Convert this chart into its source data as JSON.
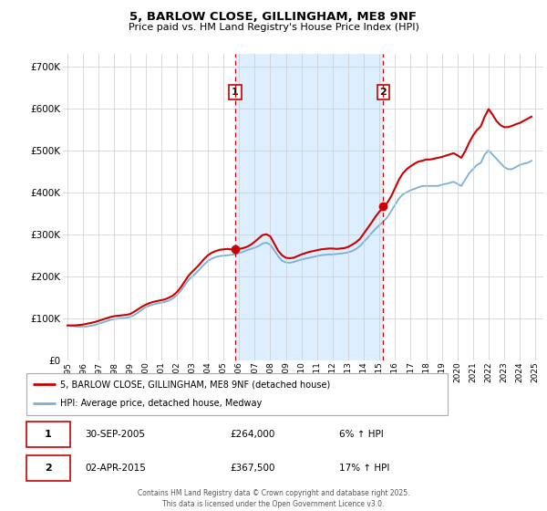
{
  "title": "5, BARLOW CLOSE, GILLINGHAM, ME8 9NF",
  "subtitle": "Price paid vs. HM Land Registry's House Price Index (HPI)",
  "ytick_values": [
    0,
    100000,
    200000,
    300000,
    400000,
    500000,
    600000,
    700000
  ],
  "ylim": [
    0,
    730000
  ],
  "xlim_start": 1994.7,
  "xlim_end": 2025.5,
  "marker1_x": 2005.75,
  "marker1_y": 264000,
  "marker2_x": 2015.25,
  "marker2_y": 367500,
  "vline1_x": 2005.75,
  "vline2_x": 2015.25,
  "shade_start": 2005.75,
  "shade_end": 2015.25,
  "red_color": "#cc0000",
  "blue_color": "#7ab0d4",
  "shade_color": "#ddeeff",
  "legend_label_red": "5, BARLOW CLOSE, GILLINGHAM, ME8 9NF (detached house)",
  "legend_label_blue": "HPI: Average price, detached house, Medway",
  "footnote1_num": "1",
  "footnote1_date": "30-SEP-2005",
  "footnote1_price": "£264,000",
  "footnote1_hpi": "6% ↑ HPI",
  "footnote2_num": "2",
  "footnote2_date": "02-APR-2015",
  "footnote2_price": "£367,500",
  "footnote2_hpi": "17% ↑ HPI",
  "copyright_text": "Contains HM Land Registry data © Crown copyright and database right 2025.\nThis data is licensed under the Open Government Licence v3.0.",
  "hpi_years": [
    1995.0,
    1995.25,
    1995.5,
    1995.75,
    1996.0,
    1996.25,
    1996.5,
    1996.75,
    1997.0,
    1997.25,
    1997.5,
    1997.75,
    1998.0,
    1998.25,
    1998.5,
    1998.75,
    1999.0,
    1999.25,
    1999.5,
    1999.75,
    2000.0,
    2000.25,
    2000.5,
    2000.75,
    2001.0,
    2001.25,
    2001.5,
    2001.75,
    2002.0,
    2002.25,
    2002.5,
    2002.75,
    2003.0,
    2003.25,
    2003.5,
    2003.75,
    2004.0,
    2004.25,
    2004.5,
    2004.75,
    2005.0,
    2005.25,
    2005.5,
    2005.75,
    2006.0,
    2006.25,
    2006.5,
    2006.75,
    2007.0,
    2007.25,
    2007.5,
    2007.75,
    2008.0,
    2008.25,
    2008.5,
    2008.75,
    2009.0,
    2009.25,
    2009.5,
    2009.75,
    2010.0,
    2010.25,
    2010.5,
    2010.75,
    2011.0,
    2011.25,
    2011.5,
    2011.75,
    2012.0,
    2012.25,
    2012.5,
    2012.75,
    2013.0,
    2013.25,
    2013.5,
    2013.75,
    2014.0,
    2014.25,
    2014.5,
    2014.75,
    2015.0,
    2015.25,
    2015.5,
    2015.75,
    2016.0,
    2016.25,
    2016.5,
    2016.75,
    2017.0,
    2017.25,
    2017.5,
    2017.75,
    2018.0,
    2018.25,
    2018.5,
    2018.75,
    2019.0,
    2019.25,
    2019.5,
    2019.75,
    2020.0,
    2020.25,
    2020.5,
    2020.75,
    2021.0,
    2021.25,
    2021.5,
    2021.75,
    2022.0,
    2022.25,
    2022.5,
    2022.75,
    2023.0,
    2023.25,
    2023.5,
    2023.75,
    2024.0,
    2024.25,
    2024.5,
    2024.75
  ],
  "hpi_values": [
    82000,
    81000,
    80500,
    80000,
    80000,
    80500,
    82000,
    84000,
    87000,
    90000,
    93000,
    96000,
    98000,
    99000,
    100000,
    101000,
    103000,
    107000,
    113000,
    120000,
    126000,
    130000,
    133000,
    135000,
    137000,
    139000,
    142000,
    147000,
    155000,
    165000,
    178000,
    191000,
    200000,
    208000,
    218000,
    228000,
    236000,
    242000,
    246000,
    248000,
    249000,
    250000,
    251000,
    252000,
    255000,
    258000,
    262000,
    265000,
    268000,
    272000,
    278000,
    280000,
    275000,
    262000,
    248000,
    237000,
    233000,
    232000,
    234000,
    237000,
    240000,
    242000,
    244000,
    246000,
    248000,
    250000,
    251000,
    252000,
    252000,
    253000,
    254000,
    255000,
    257000,
    260000,
    265000,
    272000,
    282000,
    292000,
    303000,
    313000,
    322000,
    330000,
    340000,
    355000,
    370000,
    385000,
    395000,
    400000,
    405000,
    408000,
    412000,
    415000,
    415000,
    415000,
    415000,
    415000,
    418000,
    420000,
    422000,
    425000,
    420000,
    415000,
    430000,
    445000,
    455000,
    465000,
    470000,
    490000,
    500000,
    490000,
    480000,
    470000,
    460000,
    455000,
    455000,
    460000,
    465000,
    468000,
    470000,
    475000
  ],
  "red_years": [
    1995.0,
    1995.25,
    1995.5,
    1995.75,
    1996.0,
    1996.25,
    1996.5,
    1996.75,
    1997.0,
    1997.25,
    1997.5,
    1997.75,
    1998.0,
    1998.25,
    1998.5,
    1998.75,
    1999.0,
    1999.25,
    1999.5,
    1999.75,
    2000.0,
    2000.25,
    2000.5,
    2000.75,
    2001.0,
    2001.25,
    2001.5,
    2001.75,
    2002.0,
    2002.25,
    2002.5,
    2002.75,
    2003.0,
    2003.25,
    2003.5,
    2003.75,
    2004.0,
    2004.25,
    2004.5,
    2004.75,
    2005.0,
    2005.25,
    2005.5,
    2005.75,
    2006.0,
    2006.25,
    2006.5,
    2006.75,
    2007.0,
    2007.25,
    2007.5,
    2007.75,
    2008.0,
    2008.25,
    2008.5,
    2008.75,
    2009.0,
    2009.25,
    2009.5,
    2009.75,
    2010.0,
    2010.25,
    2010.5,
    2010.75,
    2011.0,
    2011.25,
    2011.5,
    2011.75,
    2012.0,
    2012.25,
    2012.5,
    2012.75,
    2013.0,
    2013.25,
    2013.5,
    2013.75,
    2014.0,
    2014.25,
    2014.5,
    2014.75,
    2015.0,
    2015.25,
    2015.5,
    2015.75,
    2016.0,
    2016.25,
    2016.5,
    2016.75,
    2017.0,
    2017.25,
    2017.5,
    2017.75,
    2018.0,
    2018.25,
    2018.5,
    2018.75,
    2019.0,
    2019.25,
    2019.5,
    2019.75,
    2020.0,
    2020.25,
    2020.5,
    2020.75,
    2021.0,
    2021.25,
    2021.5,
    2021.75,
    2022.0,
    2022.25,
    2022.5,
    2022.75,
    2023.0,
    2023.25,
    2023.5,
    2023.75,
    2024.0,
    2024.25,
    2024.5,
    2024.75
  ],
  "red_values": [
    83000,
    83000,
    83000,
    84000,
    85000,
    87000,
    89000,
    91000,
    94000,
    97000,
    100000,
    103000,
    105000,
    106000,
    107000,
    108000,
    110000,
    115000,
    121000,
    127000,
    132000,
    136000,
    139000,
    141000,
    143000,
    145000,
    149000,
    154000,
    162000,
    173000,
    187000,
    201000,
    211000,
    220000,
    230000,
    241000,
    250000,
    256000,
    260000,
    263000,
    264000,
    265000,
    264000,
    264000,
    265000,
    267000,
    270000,
    275000,
    282000,
    290000,
    298000,
    300000,
    295000,
    278000,
    261000,
    250000,
    244000,
    243000,
    244000,
    248000,
    252000,
    255000,
    258000,
    260000,
    262000,
    264000,
    265000,
    266000,
    266000,
    265000,
    266000,
    267000,
    270000,
    275000,
    281000,
    289000,
    302000,
    315000,
    328000,
    342000,
    354000,
    364000,
    375000,
    390000,
    410000,
    430000,
    445000,
    455000,
    462000,
    468000,
    473000,
    475000,
    478000,
    478000,
    480000,
    482000,
    484000,
    487000,
    490000,
    493000,
    488000,
    482000,
    498000,
    518000,
    535000,
    548000,
    557000,
    580000,
    598000,
    585000,
    570000,
    560000,
    555000,
    555000,
    558000,
    562000,
    565000,
    570000,
    575000,
    580000
  ]
}
